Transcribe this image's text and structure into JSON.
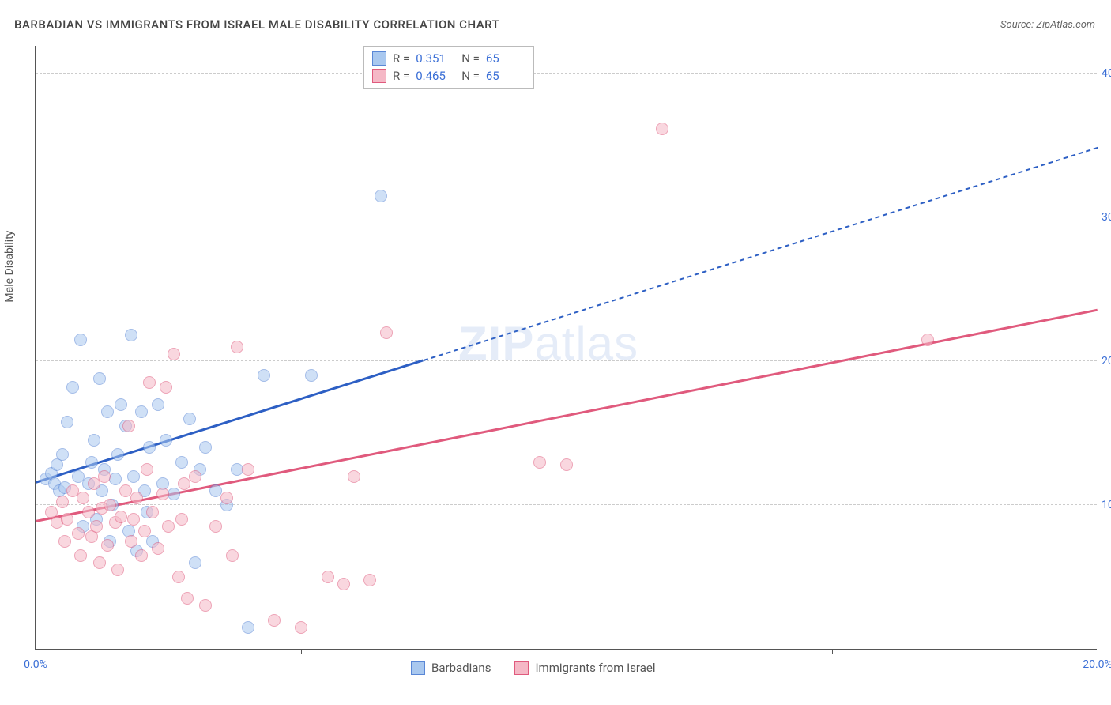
{
  "title": "BARBADIAN VS IMMIGRANTS FROM ISRAEL MALE DISABILITY CORRELATION CHART",
  "source": "Source: ZipAtlas.com",
  "y_axis_title": "Male Disability",
  "watermark": {
    "bold": "ZIP",
    "rest": "atlas"
  },
  "chart": {
    "type": "scatter",
    "xlim": [
      0,
      20
    ],
    "ylim": [
      0,
      42
    ],
    "x_ticks": [
      0,
      5,
      10,
      15,
      20
    ],
    "x_tick_labels": [
      "0.0%",
      "",
      "",
      "",
      "20.0%"
    ],
    "y_ticks": [
      10,
      20,
      30,
      40
    ],
    "y_tick_labels": [
      "10.0%",
      "20.0%",
      "30.0%",
      "40.0%"
    ],
    "background_color": "#ffffff",
    "grid_color": "#cccccc",
    "axis_color": "#555555",
    "tick_label_color": "#3b6fd6",
    "point_radius": 8,
    "series": [
      {
        "name": "Barbadians",
        "fill": "#a9c8ef",
        "stroke": "#5a87d6",
        "fill_opacity": 0.55,
        "points": [
          [
            0.2,
            11.8
          ],
          [
            0.3,
            12.2
          ],
          [
            0.35,
            11.5
          ],
          [
            0.4,
            12.8
          ],
          [
            0.45,
            11.0
          ],
          [
            0.5,
            13.5
          ],
          [
            0.55,
            11.2
          ],
          [
            0.6,
            15.8
          ],
          [
            0.7,
            18.2
          ],
          [
            0.8,
            12.0
          ],
          [
            0.85,
            21.5
          ],
          [
            0.9,
            8.5
          ],
          [
            1.0,
            11.5
          ],
          [
            1.05,
            13.0
          ],
          [
            1.1,
            14.5
          ],
          [
            1.15,
            9.0
          ],
          [
            1.2,
            18.8
          ],
          [
            1.25,
            11.0
          ],
          [
            1.3,
            12.5
          ],
          [
            1.35,
            16.5
          ],
          [
            1.4,
            7.5
          ],
          [
            1.45,
            10.0
          ],
          [
            1.5,
            11.8
          ],
          [
            1.55,
            13.5
          ],
          [
            1.6,
            17.0
          ],
          [
            1.7,
            15.5
          ],
          [
            1.75,
            8.2
          ],
          [
            1.8,
            21.8
          ],
          [
            1.85,
            12.0
          ],
          [
            1.9,
            6.8
          ],
          [
            2.0,
            16.5
          ],
          [
            2.05,
            11.0
          ],
          [
            2.1,
            9.5
          ],
          [
            2.15,
            14.0
          ],
          [
            2.2,
            7.5
          ],
          [
            2.3,
            17.0
          ],
          [
            2.4,
            11.5
          ],
          [
            2.45,
            14.5
          ],
          [
            2.6,
            10.8
          ],
          [
            2.75,
            13.0
          ],
          [
            2.9,
            16.0
          ],
          [
            3.0,
            6.0
          ],
          [
            3.1,
            12.5
          ],
          [
            3.2,
            14.0
          ],
          [
            3.4,
            11.0
          ],
          [
            3.6,
            10.0
          ],
          [
            3.8,
            12.5
          ],
          [
            4.0,
            1.5
          ],
          [
            4.3,
            19.0
          ],
          [
            5.2,
            19.0
          ],
          [
            6.5,
            31.5
          ]
        ],
        "trend": {
          "color": "#2d5fc4",
          "start": [
            0,
            11.5
          ],
          "solid_end": [
            7.3,
            20.0
          ],
          "dashed_end": [
            20,
            34.8
          ]
        }
      },
      {
        "name": "Immigrants from Israel",
        "fill": "#f5b8c6",
        "stroke": "#e05a7d",
        "fill_opacity": 0.55,
        "points": [
          [
            0.3,
            9.5
          ],
          [
            0.4,
            8.8
          ],
          [
            0.5,
            10.2
          ],
          [
            0.55,
            7.5
          ],
          [
            0.6,
            9.0
          ],
          [
            0.7,
            11.0
          ],
          [
            0.8,
            8.0
          ],
          [
            0.85,
            6.5
          ],
          [
            0.9,
            10.5
          ],
          [
            1.0,
            9.5
          ],
          [
            1.05,
            7.8
          ],
          [
            1.1,
            11.5
          ],
          [
            1.15,
            8.5
          ],
          [
            1.2,
            6.0
          ],
          [
            1.25,
            9.8
          ],
          [
            1.3,
            12.0
          ],
          [
            1.35,
            7.2
          ],
          [
            1.4,
            10.0
          ],
          [
            1.5,
            8.8
          ],
          [
            1.55,
            5.5
          ],
          [
            1.6,
            9.2
          ],
          [
            1.7,
            11.0
          ],
          [
            1.75,
            15.5
          ],
          [
            1.8,
            7.5
          ],
          [
            1.85,
            9.0
          ],
          [
            1.9,
            10.5
          ],
          [
            2.0,
            6.5
          ],
          [
            2.05,
            8.2
          ],
          [
            2.1,
            12.5
          ],
          [
            2.15,
            18.5
          ],
          [
            2.2,
            9.5
          ],
          [
            2.3,
            7.0
          ],
          [
            2.4,
            10.8
          ],
          [
            2.45,
            18.2
          ],
          [
            2.5,
            8.5
          ],
          [
            2.6,
            20.5
          ],
          [
            2.7,
            5.0
          ],
          [
            2.75,
            9.0
          ],
          [
            2.8,
            11.5
          ],
          [
            2.85,
            3.5
          ],
          [
            3.0,
            12.0
          ],
          [
            3.2,
            3.0
          ],
          [
            3.4,
            8.5
          ],
          [
            3.6,
            10.5
          ],
          [
            3.7,
            6.5
          ],
          [
            3.8,
            21.0
          ],
          [
            4.0,
            12.5
          ],
          [
            4.5,
            2.0
          ],
          [
            5.0,
            1.5
          ],
          [
            5.5,
            5.0
          ],
          [
            5.8,
            4.5
          ],
          [
            6.0,
            12.0
          ],
          [
            6.3,
            4.8
          ],
          [
            6.6,
            22.0
          ],
          [
            9.5,
            13.0
          ],
          [
            10.0,
            12.8
          ],
          [
            11.8,
            36.2
          ],
          [
            16.8,
            21.5
          ]
        ],
        "trend": {
          "color": "#e05a7d",
          "start": [
            0,
            8.8
          ],
          "solid_end": [
            20,
            23.5
          ],
          "dashed_end": null
        }
      }
    ]
  },
  "legend_top": {
    "rows": [
      {
        "swatch_fill": "#a9c8ef",
        "swatch_stroke": "#5a87d6",
        "r_label": "R =",
        "r_value": "0.351",
        "n_label": "N =",
        "n_value": "65"
      },
      {
        "swatch_fill": "#f5b8c6",
        "swatch_stroke": "#e05a7d",
        "r_label": "R =",
        "r_value": "0.465",
        "n_label": "N =",
        "n_value": "65"
      }
    ]
  },
  "legend_bottom": {
    "items": [
      {
        "swatch_fill": "#a9c8ef",
        "swatch_stroke": "#5a87d6",
        "label": "Barbadians"
      },
      {
        "swatch_fill": "#f5b8c6",
        "swatch_stroke": "#e05a7d",
        "label": "Immigrants from Israel"
      }
    ]
  }
}
